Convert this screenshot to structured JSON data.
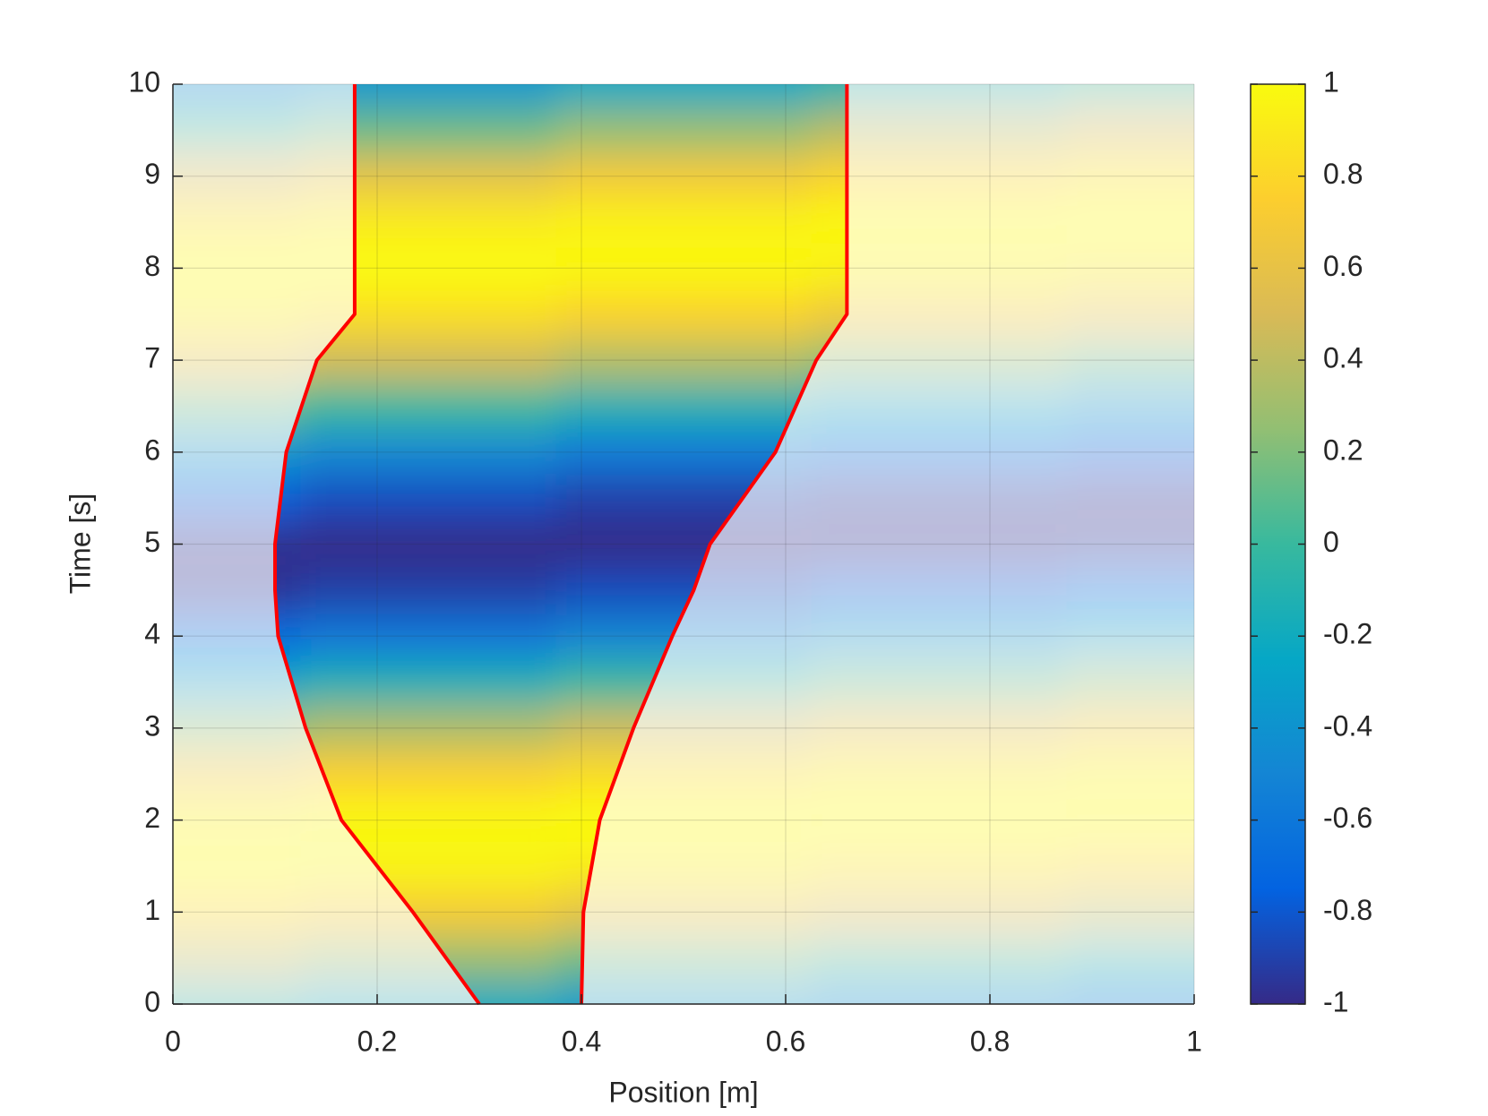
{
  "chart_data": {
    "type": "heatmap",
    "xlabel": "Position [m]",
    "ylabel": "Time [s]",
    "colormap": "parula",
    "x": [
      0,
      0.25,
      0.5,
      0.75,
      1
    ],
    "y": [
      0,
      0.5,
      1,
      1.5,
      2,
      2.5,
      3,
      3.5,
      4,
      4.5,
      5,
      5.5,
      6,
      6.5,
      7,
      7.5,
      8,
      8.5,
      9,
      9.5,
      10
    ],
    "z": [
      [
        -0.09,
        -0.21,
        -0.33,
        -0.45,
        -0.56
      ],
      [
        0.4,
        0.28,
        0.16,
        0.04,
        -0.09
      ],
      [
        0.79,
        0.71,
        0.61,
        0.51,
        0.4
      ],
      [
        0.99,
        0.96,
        0.92,
        0.86,
        0.79
      ],
      [
        0.94,
        0.98,
        1,
        1,
        0.99
      ],
      [
        0.67,
        0.76,
        0.83,
        0.89,
        0.94
      ],
      [
        0.23,
        0.35,
        0.46,
        0.57,
        0.67
      ],
      [
        -0.27,
        -0.14,
        -0.02,
        0.11,
        0.23
      ],
      [
        -0.7,
        -0.6,
        -0.5,
        -0.38,
        -0.27
      ],
      [
        -0.96,
        -0.91,
        -0.85,
        -0.78,
        -0.7
      ],
      [
        -0.98,
        -1,
        -1,
        -0.99,
        -0.96
      ],
      [
        -0.77,
        -0.84,
        -0.9,
        -0.95,
        -0.98
      ],
      [
        -0.37,
        -0.48,
        -0.58,
        -0.68,
        -0.77
      ],
      [
        0.13,
        0,
        -0.12,
        -0.24,
        -0.37
      ],
      [
        0.59,
        0.48,
        0.37,
        0.25,
        0.13
      ],
      [
        0.91,
        0.84,
        0.77,
        0.68,
        0.59
      ],
      [
        1,
        1,
        0.98,
        0.95,
        0.9
      ],
      [
        0.85,
        0.91,
        0.95,
        0.98,
        1
      ],
      [
        0.49,
        0.6,
        0.69,
        0.78,
        0.85
      ],
      [
        0.01,
        0.14,
        0.26,
        0.38,
        0.49
      ],
      [
        -0.47,
        -0.35,
        -0.23,
        -0.11,
        0.01
      ]
    ],
    "boundary": {
      "color": "#ff0000",
      "t": [
        0,
        1,
        2,
        3,
        4,
        4.5,
        5,
        6,
        7,
        7.5,
        10
      ],
      "left": [
        0.3,
        0.235,
        0.165,
        0.13,
        0.103,
        0.1,
        0.1,
        0.111,
        0.141,
        0.178,
        0.178
      ],
      "right": [
        0.4,
        0.402,
        0.418,
        0.451,
        0.489,
        0.51,
        0.526,
        0.59,
        0.63,
        0.66,
        0.66
      ]
    },
    "xlim": [
      0,
      1
    ],
    "xticks": [
      0,
      0.2,
      0.4,
      0.6,
      0.8,
      1
    ],
    "ylim": [
      0,
      10
    ],
    "yticks": [
      0,
      1,
      2,
      3,
      4,
      5,
      6,
      7,
      8,
      9,
      10
    ],
    "grid": true,
    "colorbar": {
      "clim": [
        -1,
        1
      ],
      "ticks": [
        -1,
        -0.8,
        -0.6,
        -0.4,
        -0.2,
        0,
        0.2,
        0.4,
        0.6,
        0.8,
        1
      ]
    }
  }
}
